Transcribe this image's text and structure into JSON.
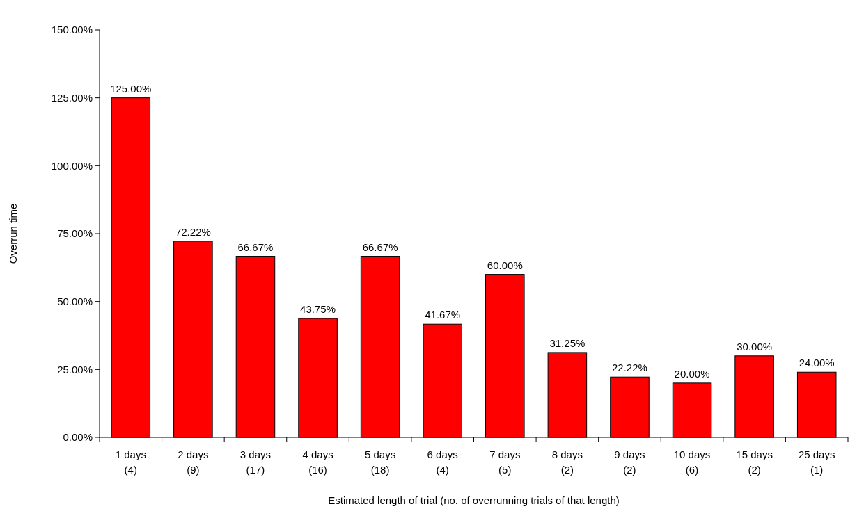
{
  "chart_data": {
    "type": "bar",
    "xlabel": "Estimated length of trial (no. of overrunning trials of that length)",
    "ylabel": "Overrun time",
    "categories": [
      "1 days\n(4)",
      "2 days\n(9)",
      "3 days\n(17)",
      "4 days\n(16)",
      "5 days\n(18)",
      "6 days\n(4)",
      "7 days\n(5)",
      "8 days\n(2)",
      "9 days\n(2)",
      "10 days\n(6)",
      "15 days\n(2)",
      "25 days\n(1)"
    ],
    "values": [
      125,
      72.22,
      66.67,
      43.75,
      66.67,
      41.67,
      60,
      31.25,
      22.22,
      20,
      30,
      24
    ],
    "value_labels": [
      "125.00%",
      "72.22%",
      "66.67%",
      "43.75%",
      "66.67%",
      "41.67%",
      "60.00%",
      "31.25%",
      "22.22%",
      "20.00%",
      "30.00%",
      "24.00%"
    ],
    "color": "#ff0000",
    "ylim": [
      0,
      150
    ],
    "yticks": [
      {
        "value": 0,
        "label": "0.00%"
      },
      {
        "value": 25,
        "label": "25.00%"
      },
      {
        "value": 50,
        "label": "50.00%"
      },
      {
        "value": 75,
        "label": "75.00%"
      },
      {
        "value": 100,
        "label": "100.00%"
      },
      {
        "value": 125,
        "label": "125.00%"
      },
      {
        "value": 150,
        "label": "150.00%"
      }
    ]
  }
}
